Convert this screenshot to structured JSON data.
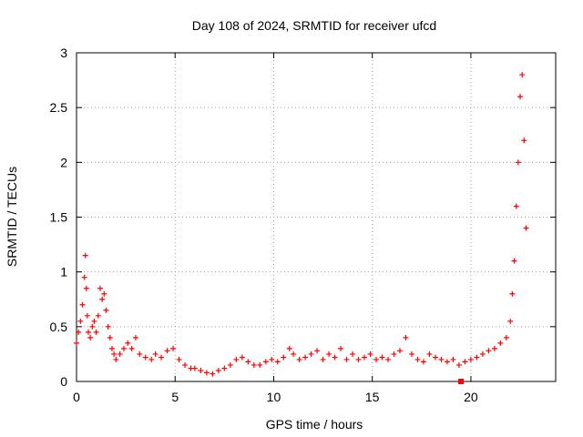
{
  "chart_data": {
    "type": "scatter",
    "title": "Day 108 of 2024, SRMTID for receiver ufcd",
    "xlabel": "GPS time / hours",
    "ylabel": "SRMTID / TECUs",
    "xlim": [
      0,
      24.3
    ],
    "ylim": [
      0,
      3
    ],
    "xticks": [
      0,
      5,
      10,
      15,
      20
    ],
    "yticks": [
      0,
      0.5,
      1,
      1.5,
      2,
      2.5,
      3
    ],
    "xtick_labels": [
      "0",
      "5",
      "10",
      "15",
      "20"
    ],
    "ytick_labels": [
      "0",
      "0.5",
      "1",
      "1.5",
      "2",
      "2.5",
      "3"
    ],
    "grid": true,
    "marker": "+",
    "series": [
      {
        "name": "SRMTID",
        "color": "#ff0000",
        "x": [
          0.0,
          0.1,
          0.2,
          0.3,
          0.4,
          0.45,
          0.5,
          0.55,
          0.6,
          0.7,
          0.8,
          0.9,
          1.0,
          1.1,
          1.2,
          1.3,
          1.4,
          1.5,
          1.6,
          1.7,
          1.8,
          1.9,
          2.0,
          2.2,
          2.4,
          2.6,
          2.8,
          3.0,
          3.2,
          3.5,
          3.8,
          4.0,
          4.3,
          4.6,
          4.9,
          5.2,
          5.5,
          5.8,
          6.0,
          6.3,
          6.6,
          6.9,
          7.2,
          7.5,
          7.8,
          8.1,
          8.4,
          8.7,
          9.0,
          9.3,
          9.6,
          9.9,
          10.2,
          10.5,
          10.8,
          11.0,
          11.3,
          11.6,
          11.9,
          12.2,
          12.5,
          12.8,
          13.1,
          13.4,
          13.7,
          14.0,
          14.3,
          14.6,
          14.9,
          15.2,
          15.5,
          15.8,
          16.1,
          16.4,
          16.7,
          17.0,
          17.3,
          17.6,
          17.9,
          18.2,
          18.5,
          18.8,
          19.1,
          19.4,
          19.7,
          20.0,
          20.3,
          20.6,
          20.9,
          21.2,
          21.5,
          21.8,
          22.0,
          22.1,
          22.2,
          22.3,
          22.4,
          22.5,
          22.6,
          22.7,
          22.8
        ],
        "y": [
          0.35,
          0.45,
          0.55,
          0.7,
          0.95,
          1.15,
          0.85,
          0.6,
          0.45,
          0.4,
          0.5,
          0.55,
          0.45,
          0.6,
          0.85,
          0.75,
          0.8,
          0.65,
          0.5,
          0.4,
          0.3,
          0.25,
          0.2,
          0.25,
          0.3,
          0.35,
          0.3,
          0.4,
          0.25,
          0.22,
          0.2,
          0.25,
          0.22,
          0.28,
          0.3,
          0.2,
          0.15,
          0.12,
          0.12,
          0.1,
          0.08,
          0.07,
          0.1,
          0.12,
          0.15,
          0.2,
          0.22,
          0.18,
          0.15,
          0.15,
          0.18,
          0.2,
          0.18,
          0.22,
          0.3,
          0.25,
          0.2,
          0.22,
          0.25,
          0.28,
          0.2,
          0.25,
          0.22,
          0.3,
          0.2,
          0.25,
          0.2,
          0.22,
          0.25,
          0.2,
          0.22,
          0.2,
          0.25,
          0.28,
          0.4,
          0.25,
          0.2,
          0.18,
          0.25,
          0.22,
          0.2,
          0.18,
          0.2,
          0.15,
          0.18,
          0.2,
          0.22,
          0.25,
          0.28,
          0.3,
          0.35,
          0.4,
          0.55,
          0.8,
          1.1,
          1.6,
          2.0,
          2.6,
          2.8,
          2.2,
          1.4
        ]
      }
    ],
    "outliers": [
      {
        "x": 19.5,
        "y": 0.0
      }
    ]
  }
}
